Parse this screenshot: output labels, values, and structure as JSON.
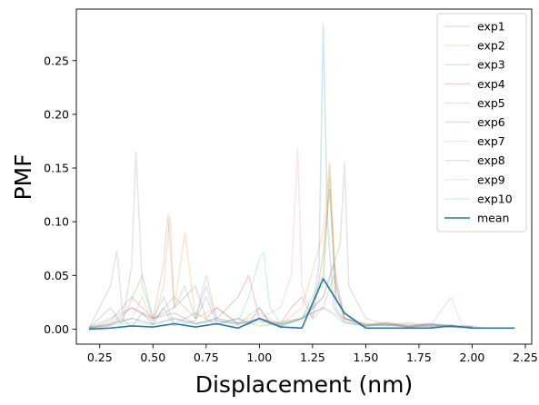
{
  "chart_data": {
    "type": "line",
    "xlabel": "Displacement (nm)",
    "ylabel": "PMF",
    "xlim": [
      0.14,
      2.28
    ],
    "ylim": [
      -0.014,
      0.298
    ],
    "xticks": [
      0.25,
      0.5,
      0.75,
      1.0,
      1.25,
      1.5,
      1.75,
      2.0,
      2.25
    ],
    "xtick_labels": [
      "0.25",
      "0.50",
      "0.75",
      "1.00",
      "1.25",
      "1.50",
      "1.75",
      "2.00",
      "2.25"
    ],
    "yticks": [
      0.0,
      0.05,
      0.1,
      0.15,
      0.2,
      0.25
    ],
    "ytick_labels": [
      "0.00",
      "0.05",
      "0.10",
      "0.15",
      "0.20",
      "0.25"
    ],
    "legend_position": "top-right",
    "grid": false,
    "series": [
      {
        "name": "exp1",
        "color": "#1f77b4",
        "opacity": 0.2,
        "points": [
          [
            0.2,
            0.001
          ],
          [
            0.3,
            0.003
          ],
          [
            0.35,
            0.01
          ],
          [
            0.4,
            0.002
          ],
          [
            0.45,
            0.015
          ],
          [
            0.5,
            0.004
          ],
          [
            0.55,
            0.02
          ],
          [
            0.6,
            0.003
          ],
          [
            0.7,
            0.008
          ],
          [
            0.75,
            0.03
          ],
          [
            0.8,
            0.005
          ],
          [
            0.9,
            0.01
          ],
          [
            0.95,
            0.004
          ],
          [
            1.0,
            0.02
          ],
          [
            1.05,
            0.006
          ],
          [
            1.1,
            0.003
          ],
          [
            1.2,
            0.01
          ],
          [
            1.25,
            0.02
          ],
          [
            1.28,
            0.06
          ],
          [
            1.3,
            0.283
          ],
          [
            1.32,
            0.1
          ],
          [
            1.35,
            0.02
          ],
          [
            1.4,
            0.006
          ],
          [
            1.5,
            0.003
          ],
          [
            1.6,
            0.004
          ],
          [
            1.7,
            0.002
          ],
          [
            1.8,
            0.005
          ],
          [
            1.9,
            0.003
          ],
          [
            2.0,
            0.002
          ],
          [
            2.05,
            0.001
          ]
        ]
      },
      {
        "name": "exp2",
        "color": "#ff7f0e",
        "opacity": 0.2,
        "points": [
          [
            0.2,
            0.002
          ],
          [
            0.3,
            0.004
          ],
          [
            0.4,
            0.01
          ],
          [
            0.45,
            0.03
          ],
          [
            0.5,
            0.005
          ],
          [
            0.55,
            0.04
          ],
          [
            0.58,
            0.105
          ],
          [
            0.6,
            0.02
          ],
          [
            0.65,
            0.09
          ],
          [
            0.7,
            0.01
          ],
          [
            0.8,
            0.02
          ],
          [
            0.9,
            0.005
          ],
          [
            1.0,
            0.015
          ],
          [
            1.1,
            0.004
          ],
          [
            1.2,
            0.02
          ],
          [
            1.3,
            0.09
          ],
          [
            1.33,
            0.155
          ],
          [
            1.36,
            0.03
          ],
          [
            1.4,
            0.01
          ],
          [
            1.5,
            0.004
          ],
          [
            1.6,
            0.006
          ],
          [
            1.7,
            0.003
          ],
          [
            1.8,
            0.004
          ],
          [
            1.9,
            0.002
          ],
          [
            2.0,
            0.003
          ],
          [
            2.05,
            0.001
          ]
        ]
      },
      {
        "name": "exp3",
        "color": "#2ca02c",
        "opacity": 0.2,
        "points": [
          [
            0.2,
            0.001
          ],
          [
            0.3,
            0.02
          ],
          [
            0.35,
            0.005
          ],
          [
            0.45,
            0.05
          ],
          [
            0.5,
            0.01
          ],
          [
            0.55,
            0.03
          ],
          [
            0.6,
            0.005
          ],
          [
            0.7,
            0.015
          ],
          [
            0.8,
            0.004
          ],
          [
            0.9,
            0.01
          ],
          [
            1.0,
            0.003
          ],
          [
            1.1,
            0.005
          ],
          [
            1.2,
            0.01
          ],
          [
            1.3,
            0.05
          ],
          [
            1.33,
            0.14
          ],
          [
            1.36,
            0.02
          ],
          [
            1.4,
            0.008
          ],
          [
            1.5,
            0.003
          ],
          [
            1.6,
            0.005
          ],
          [
            1.7,
            0.002
          ],
          [
            1.8,
            0.003
          ],
          [
            1.9,
            0.002
          ],
          [
            2.0,
            0.002
          ]
        ]
      },
      {
        "name": "exp4",
        "color": "#d62728",
        "opacity": 0.2,
        "points": [
          [
            0.2,
            0.001
          ],
          [
            0.3,
            0.005
          ],
          [
            0.4,
            0.02
          ],
          [
            0.5,
            0.01
          ],
          [
            0.6,
            0.015
          ],
          [
            0.7,
            0.005
          ],
          [
            0.8,
            0.01
          ],
          [
            0.9,
            0.03
          ],
          [
            0.95,
            0.05
          ],
          [
            1.0,
            0.01
          ],
          [
            1.1,
            0.005
          ],
          [
            1.15,
            0.02
          ],
          [
            1.2,
            0.03
          ],
          [
            1.25,
            0.01
          ],
          [
            1.3,
            0.07
          ],
          [
            1.33,
            0.13
          ],
          [
            1.36,
            0.04
          ],
          [
            1.4,
            0.01
          ],
          [
            1.5,
            0.004
          ],
          [
            1.6,
            0.006
          ],
          [
            1.7,
            0.003
          ],
          [
            1.8,
            0.005
          ],
          [
            1.9,
            0.003
          ],
          [
            2.0,
            0.002
          ]
        ]
      },
      {
        "name": "exp5",
        "color": "#9467bd",
        "opacity": 0.2,
        "points": [
          [
            0.2,
            0.002
          ],
          [
            0.3,
            0.01
          ],
          [
            0.4,
            0.02
          ],
          [
            0.5,
            0.008
          ],
          [
            0.6,
            0.03
          ],
          [
            0.7,
            0.01
          ],
          [
            0.75,
            0.04
          ],
          [
            0.8,
            0.008
          ],
          [
            0.9,
            0.005
          ],
          [
            1.0,
            0.01
          ],
          [
            1.1,
            0.004
          ],
          [
            1.2,
            0.008
          ],
          [
            1.3,
            0.03
          ],
          [
            1.35,
            0.06
          ],
          [
            1.4,
            0.01
          ],
          [
            1.5,
            0.005
          ],
          [
            1.6,
            0.004
          ],
          [
            1.7,
            0.006
          ],
          [
            1.8,
            0.003
          ],
          [
            1.9,
            0.004
          ],
          [
            2.0,
            0.002
          ]
        ]
      },
      {
        "name": "exp6",
        "color": "#8c564b",
        "opacity": 0.2,
        "points": [
          [
            0.2,
            0.001
          ],
          [
            0.3,
            0.008
          ],
          [
            0.4,
            0.03
          ],
          [
            0.5,
            0.01
          ],
          [
            0.6,
            0.02
          ],
          [
            0.7,
            0.04
          ],
          [
            0.75,
            0.01
          ],
          [
            0.8,
            0.02
          ],
          [
            0.9,
            0.005
          ],
          [
            1.0,
            0.008
          ],
          [
            1.1,
            0.003
          ],
          [
            1.2,
            0.01
          ],
          [
            1.3,
            0.02
          ],
          [
            1.35,
            0.05
          ],
          [
            1.4,
            0.01
          ],
          [
            1.5,
            0.003
          ],
          [
            1.6,
            0.005
          ],
          [
            1.7,
            0.002
          ],
          [
            1.8,
            0.004
          ],
          [
            1.9,
            0.003
          ],
          [
            2.0,
            0.001
          ]
        ]
      },
      {
        "name": "exp7",
        "color": "#e377c2",
        "opacity": 0.2,
        "points": [
          [
            0.2,
            0.001
          ],
          [
            0.3,
            0.004
          ],
          [
            0.4,
            0.01
          ],
          [
            0.5,
            0.005
          ],
          [
            0.6,
            0.01
          ],
          [
            0.7,
            0.004
          ],
          [
            0.8,
            0.008
          ],
          [
            0.9,
            0.004
          ],
          [
            1.0,
            0.01
          ],
          [
            1.1,
            0.02
          ],
          [
            1.15,
            0.05
          ],
          [
            1.18,
            0.168
          ],
          [
            1.2,
            0.04
          ],
          [
            1.25,
            0.01
          ],
          [
            1.3,
            0.02
          ],
          [
            1.4,
            0.01
          ],
          [
            1.5,
            0.004
          ],
          [
            1.6,
            0.003
          ],
          [
            1.7,
            0.005
          ],
          [
            1.8,
            0.002
          ],
          [
            1.9,
            0.03
          ],
          [
            1.95,
            0.005
          ],
          [
            2.0,
            0.002
          ]
        ]
      },
      {
        "name": "exp8",
        "color": "#7f7f7f",
        "opacity": 0.2,
        "points": [
          [
            0.2,
            0.001
          ],
          [
            0.3,
            0.04
          ],
          [
            0.33,
            0.073
          ],
          [
            0.36,
            0.01
          ],
          [
            0.4,
            0.06
          ],
          [
            0.42,
            0.165
          ],
          [
            0.45,
            0.04
          ],
          [
            0.5,
            0.01
          ],
          [
            0.55,
            0.06
          ],
          [
            0.57,
            0.107
          ],
          [
            0.6,
            0.02
          ],
          [
            0.65,
            0.04
          ],
          [
            0.7,
            0.01
          ],
          [
            0.75,
            0.05
          ],
          [
            0.8,
            0.01
          ],
          [
            0.9,
            0.005
          ],
          [
            1.0,
            0.02
          ],
          [
            1.05,
            0.005
          ],
          [
            1.2,
            0.01
          ],
          [
            1.3,
            0.03
          ],
          [
            1.38,
            0.08
          ],
          [
            1.4,
            0.155
          ],
          [
            1.42,
            0.04
          ],
          [
            1.5,
            0.01
          ],
          [
            1.6,
            0.004
          ],
          [
            1.7,
            0.003
          ],
          [
            1.8,
            0.005
          ],
          [
            1.9,
            0.002
          ],
          [
            2.0,
            0.002
          ]
        ]
      },
      {
        "name": "exp9",
        "color": "#bcbd22",
        "opacity": 0.2,
        "points": [
          [
            0.2,
            0.001
          ],
          [
            0.3,
            0.003
          ],
          [
            0.4,
            0.006
          ],
          [
            0.5,
            0.004
          ],
          [
            0.6,
            0.01
          ],
          [
            0.7,
            0.005
          ],
          [
            0.8,
            0.008
          ],
          [
            0.9,
            0.003
          ],
          [
            1.0,
            0.006
          ],
          [
            1.1,
            0.003
          ],
          [
            1.2,
            0.01
          ],
          [
            1.3,
            0.04
          ],
          [
            1.33,
            0.153
          ],
          [
            1.36,
            0.03
          ],
          [
            1.4,
            0.01
          ],
          [
            1.5,
            0.005
          ],
          [
            1.6,
            0.003
          ],
          [
            1.7,
            0.004
          ],
          [
            1.8,
            0.002
          ],
          [
            1.9,
            0.003
          ],
          [
            2.0,
            0.001
          ]
        ]
      },
      {
        "name": "exp10",
        "color": "#17becf",
        "opacity": 0.2,
        "points": [
          [
            0.2,
            0.001
          ],
          [
            0.3,
            0.005
          ],
          [
            0.4,
            0.01
          ],
          [
            0.5,
            0.004
          ],
          [
            0.6,
            0.01
          ],
          [
            0.7,
            0.005
          ],
          [
            0.8,
            0.01
          ],
          [
            0.9,
            0.006
          ],
          [
            0.95,
            0.03
          ],
          [
            1.0,
            0.065
          ],
          [
            1.02,
            0.072
          ],
          [
            1.05,
            0.02
          ],
          [
            1.1,
            0.005
          ],
          [
            1.2,
            0.01
          ],
          [
            1.3,
            0.02
          ],
          [
            1.4,
            0.006
          ],
          [
            1.5,
            0.003
          ],
          [
            1.6,
            0.004
          ],
          [
            1.7,
            0.002
          ],
          [
            1.8,
            0.003
          ],
          [
            1.9,
            0.002
          ],
          [
            2.0,
            0.001
          ]
        ]
      },
      {
        "name": "mean",
        "color": "#1f77b4",
        "opacity": 1.0,
        "points": [
          [
            0.2,
            0.0
          ],
          [
            0.3,
            0.001
          ],
          [
            0.4,
            0.003
          ],
          [
            0.5,
            0.002
          ],
          [
            0.6,
            0.005
          ],
          [
            0.7,
            0.002
          ],
          [
            0.8,
            0.005
          ],
          [
            0.9,
            0.001
          ],
          [
            1.0,
            0.01
          ],
          [
            1.1,
            0.002
          ],
          [
            1.2,
            0.001
          ],
          [
            1.3,
            0.047
          ],
          [
            1.4,
            0.015
          ],
          [
            1.5,
            0.001
          ],
          [
            1.6,
            0.001
          ],
          [
            1.7,
            0.001
          ],
          [
            1.8,
            0.001
          ],
          [
            1.9,
            0.003
          ],
          [
            2.0,
            0.001
          ],
          [
            2.1,
            0.001
          ],
          [
            2.2,
            0.001
          ]
        ]
      }
    ]
  }
}
